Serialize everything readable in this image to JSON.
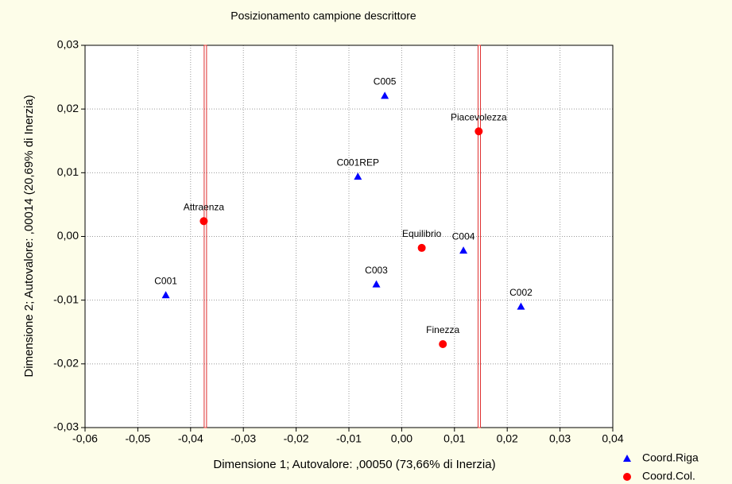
{
  "chart_data": {
    "type": "scatter",
    "title": "Posizionamento campione descrittore",
    "x_label": "Dimensione 1; Autovalore: ,00050 (73,66% di Inerzia)",
    "y_label": "Dimensione 2; Autovalore: ,00014 (20,69% di Inerzia)",
    "xlim": [
      -0.06,
      0.04
    ],
    "ylim": [
      -0.03,
      0.03
    ],
    "xticks": [
      {
        "value": -0.06,
        "label": "-0,06"
      },
      {
        "value": -0.05,
        "label": "-0,05"
      },
      {
        "value": -0.04,
        "label": "-0,04"
      },
      {
        "value": -0.03,
        "label": "-0,03"
      },
      {
        "value": -0.02,
        "label": "-0,02"
      },
      {
        "value": -0.01,
        "label": "-0,01"
      },
      {
        "value": 0,
        "label": "0,00"
      },
      {
        "value": 0.01,
        "label": "0,01"
      },
      {
        "value": 0.02,
        "label": "0,02"
      },
      {
        "value": 0.03,
        "label": "0,03"
      },
      {
        "value": 0.04,
        "label": "0,04"
      }
    ],
    "yticks": [
      {
        "value": -0.03,
        "label": "-0,03"
      },
      {
        "value": -0.02,
        "label": "-0,02"
      },
      {
        "value": -0.01,
        "label": "-0,01"
      },
      {
        "value": 0,
        "label": "0,00"
      },
      {
        "value": 0.01,
        "label": "0,01"
      },
      {
        "value": 0.02,
        "label": "0,02"
      },
      {
        "value": 0.03,
        "label": "0,03"
      }
    ],
    "grid": true,
    "vlines": [
      -0.0372,
      0.0147
    ],
    "vline_color": "#e03030",
    "series": [
      {
        "name": "Coord.Riga",
        "color": "#0000ff",
        "marker": "triangle",
        "labels": [
          "C005",
          "C001REP",
          "C004",
          "C003",
          "C001",
          "C002"
        ],
        "x": [
          -0.0032,
          -0.0083,
          0.0117,
          -0.0048,
          -0.0447,
          0.0226
        ],
        "values": [
          0.0221,
          0.0094,
          -0.0022,
          -0.0075,
          -0.0092,
          -0.011
        ]
      },
      {
        "name": "Coord.Col.",
        "color": "#ff0000",
        "marker": "circle",
        "labels": [
          "Piacevolezza",
          "Attraenza",
          "Equilibrio",
          "Finezza"
        ],
        "x": [
          0.0146,
          -0.0375,
          0.0038,
          0.0078
        ],
        "values": [
          0.0165,
          0.0024,
          -0.0018,
          -0.0169
        ]
      }
    ]
  }
}
